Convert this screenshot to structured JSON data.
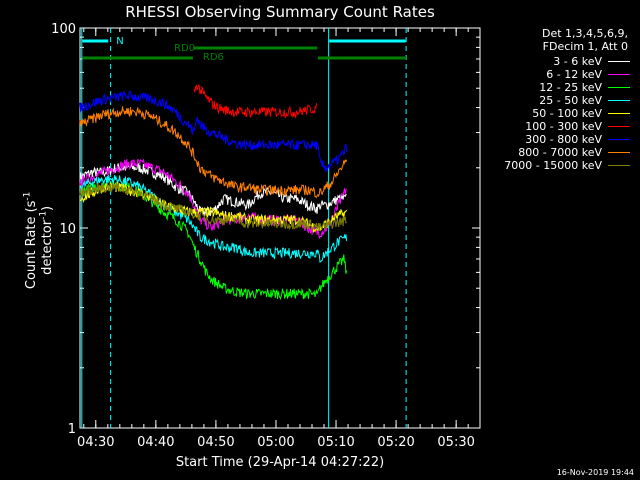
{
  "chart_data": {
    "type": "line",
    "title": "RHESSI Observing Summary Count Rates",
    "xlabel": "Start Time (29-Apr-14 04:27:22)",
    "ylabel": "Count Rate (s⁻¹ detector⁻¹)",
    "ylabel_parts": {
      "base": "Count Rate (s",
      "sup1": "-1",
      "mid": " detector",
      "sup2": "-1",
      "end": ")"
    },
    "y_scale": "log",
    "ylim": [
      1,
      100
    ],
    "y_ticks": [
      {
        "value": 1,
        "label": "1"
      },
      {
        "value": 10,
        "label": "10"
      },
      {
        "value": 100,
        "label": "100"
      }
    ],
    "x_range_minutes": [
      0,
      66.6
    ],
    "x_ticks": [
      {
        "value": 2.63,
        "label": "04:30"
      },
      {
        "value": 12.63,
        "label": "04:40"
      },
      {
        "value": 22.63,
        "label": "04:50"
      },
      {
        "value": 32.63,
        "label": "05:00"
      },
      {
        "value": 42.63,
        "label": "05:10"
      },
      {
        "value": 52.63,
        "label": "05:20"
      },
      {
        "value": 62.63,
        "label": "05:30"
      }
    ],
    "vertical_markers": [
      {
        "x": 0.3,
        "color": "#00ffff",
        "style": "solid"
      },
      {
        "x": 5.1,
        "color": "#00ffff",
        "style": "dashed"
      },
      {
        "x": 41.4,
        "color": "#00ffff",
        "style": "solid"
      },
      {
        "x": 54.3,
        "color": "#00ffff",
        "style": "dashed"
      }
    ],
    "flag_bars": [
      {
        "label": "N",
        "color": "#00ffff",
        "segments": [
          [
            0.4,
            4.7
          ],
          [
            41.5,
            54.2
          ]
        ],
        "level": 0
      },
      {
        "label": "RD0",
        "color": "#008000",
        "segments": [
          [
            19.0,
            39.5
          ]
        ],
        "level": 1
      },
      {
        "label": "RD6",
        "color": "#008000",
        "segments": [
          [
            0.4,
            18.8
          ],
          [
            39.6,
            54.3
          ]
        ],
        "level": 2
      }
    ],
    "legend_header": [
      "Det 1,3,4,5,6,9,",
      "FDecim 1, Att 0"
    ],
    "series": [
      {
        "name": "3 - 6 keV",
        "color": "#ffffff",
        "x": [
          0,
          2,
          4,
          6,
          8,
          10,
          12,
          14,
          16,
          18,
          19,
          20,
          22,
          24,
          26,
          28,
          30,
          32,
          34,
          36,
          38,
          39.5,
          40,
          41,
          42,
          43,
          44.5
        ],
        "y": [
          18,
          19,
          19,
          20,
          20,
          20,
          19,
          18,
          16,
          15,
          13.5,
          12,
          12,
          14,
          13.5,
          13,
          15,
          15,
          14,
          14,
          13,
          12.5,
          13,
          13,
          13.5,
          14,
          14
        ]
      },
      {
        "name": "6 - 12 keV",
        "color": "#ff00ff",
        "x": [
          0,
          2,
          4,
          6,
          8,
          10,
          12,
          14,
          16,
          18,
          19,
          20,
          22,
          24,
          26,
          28,
          30,
          32,
          34,
          36,
          38,
          39.5,
          40,
          41,
          42,
          43,
          44.5
        ],
        "y": [
          17,
          18,
          19,
          20,
          21,
          21,
          20,
          19,
          17,
          15,
          13,
          11,
          10,
          11,
          11,
          11.5,
          11,
          11,
          11,
          11,
          10,
          9.5,
          9.5,
          10,
          11,
          13,
          16
        ]
      },
      {
        "name": "12 - 25 keV",
        "color": "#00ff00",
        "x": [
          0,
          2,
          4,
          6,
          8,
          10,
          12,
          14,
          16,
          18,
          19,
          20,
          21,
          22,
          24,
          26,
          28,
          30,
          32,
          34,
          36,
          38,
          39.5,
          40,
          41,
          42,
          43,
          44,
          44.5
        ],
        "y": [
          15,
          16,
          16.5,
          16.5,
          16,
          15,
          13.5,
          12,
          11,
          9.5,
          8,
          7,
          6,
          5.5,
          5,
          4.8,
          4.7,
          4.7,
          4.7,
          4.7,
          4.7,
          4.7,
          4.6,
          5,
          5.5,
          6,
          6.5,
          7,
          5.5
        ]
      },
      {
        "name": "25 - 50 keV",
        "color": "#00ffff",
        "x": [
          0,
          2,
          4,
          6,
          8,
          10,
          12,
          14,
          16,
          18,
          19,
          20,
          22,
          24,
          26,
          28,
          30,
          32,
          34,
          36,
          38,
          39.5,
          40,
          41,
          42,
          43,
          44.5
        ],
        "y": [
          16,
          17,
          17.5,
          17.5,
          17,
          16,
          14.5,
          13,
          12,
          11,
          10,
          9,
          8.5,
          8,
          8,
          7.5,
          7.5,
          7.5,
          7.5,
          7.5,
          7.5,
          7.5,
          7,
          7.5,
          8,
          8.5,
          9
        ]
      },
      {
        "name": "50 - 100 keV",
        "color": "#ffff00",
        "x": [
          0,
          2,
          4,
          6,
          8,
          10,
          12,
          14,
          16,
          18,
          19,
          20,
          22,
          24,
          26,
          28,
          30,
          32,
          34,
          36,
          38,
          39.5,
          40,
          41,
          42,
          43,
          44.5
        ],
        "y": [
          14,
          15,
          16,
          16,
          15.5,
          15,
          14,
          13,
          12.5,
          12,
          12,
          12,
          12,
          11.5,
          11.5,
          11,
          11,
          11,
          11,
          11,
          10.5,
          10,
          10,
          10.5,
          11,
          11.5,
          12
        ]
      },
      {
        "name": "100 - 300 keV",
        "color": "#ff0000",
        "x": [
          19,
          19.5,
          20,
          21,
          22,
          23,
          24,
          26,
          28,
          30,
          32,
          34,
          36,
          38,
          39.5
        ],
        "y": [
          48,
          52,
          49,
          45,
          42,
          40,
          39,
          38,
          38,
          38,
          38,
          38,
          38,
          39,
          40
        ]
      },
      {
        "name": "300 - 800 keV",
        "color": "#0000ff",
        "x": [
          0,
          2,
          4,
          6,
          8,
          10,
          12,
          14,
          16,
          17,
          18,
          19,
          19.5,
          20,
          21,
          22,
          24,
          26,
          28,
          30,
          32,
          34,
          36,
          38,
          39.5,
          40,
          41,
          42,
          43,
          44,
          44.5
        ],
        "y": [
          40,
          42,
          44,
          45,
          46,
          45,
          44,
          42,
          38,
          35,
          33,
          30,
          36,
          33,
          31,
          30,
          28,
          26.5,
          26,
          26,
          26,
          26,
          26,
          26,
          26,
          21,
          20,
          21,
          22,
          24,
          26
        ]
      },
      {
        "name": "800 - 7000 keV",
        "color": "#ff8000",
        "x": [
          0,
          2,
          4,
          6,
          8,
          10,
          12,
          14,
          16,
          18,
          19,
          20,
          22,
          24,
          26,
          28,
          30,
          32,
          34,
          36,
          38,
          39.5,
          40,
          41,
          42,
          43,
          44.5
        ],
        "y": [
          33,
          35,
          37,
          38,
          38.5,
          38,
          36,
          33,
          30,
          26,
          23,
          20,
          18,
          17,
          16,
          16,
          15.5,
          15.5,
          15.5,
          15.5,
          15.5,
          15,
          15,
          16,
          17,
          19,
          22
        ]
      },
      {
        "name": "7000 - 15000 keV",
        "color": "#808000",
        "x": [
          0,
          2,
          4,
          6,
          8,
          10,
          12,
          14,
          16,
          18,
          20,
          22,
          24,
          26,
          28,
          30,
          32,
          34,
          36,
          38,
          40,
          42,
          44.5
        ],
        "y": [
          15,
          15.5,
          16,
          16,
          15.5,
          15,
          14,
          13,
          12.5,
          12,
          11.5,
          11,
          11,
          11,
          10.5,
          10.5,
          10.5,
          10.5,
          10.5,
          10.5,
          10,
          10.5,
          11
        ]
      }
    ]
  },
  "footer": "16-Nov-2019 19:44"
}
